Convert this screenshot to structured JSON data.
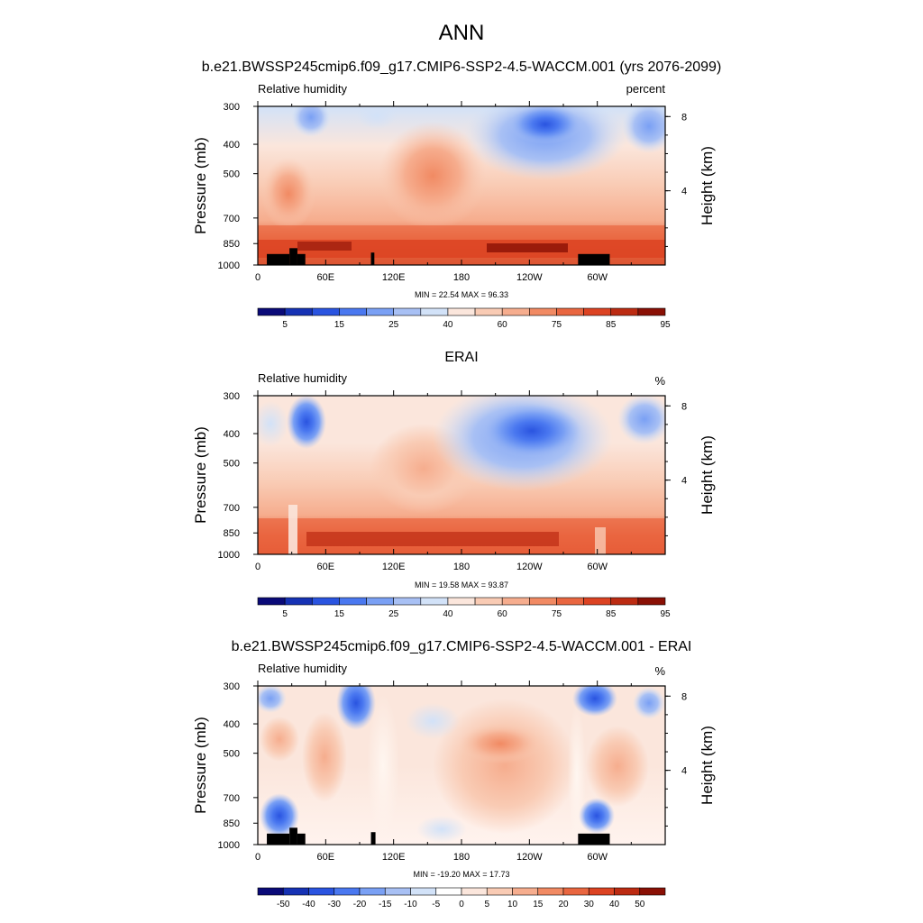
{
  "figure": {
    "title": "ANN"
  },
  "chart_data": [
    {
      "type": "heatmap",
      "title": "b.e21.BWSSP245cmip6.f09_g17.CMIP6-SSP2-4.5-WACCM.001 (yrs 2076-2099)",
      "variable_label": "Relative humidity",
      "units": "percent",
      "xlabel": "",
      "ylabel": "Pressure (mb)",
      "y2label": "Height (km)",
      "x_ticks": [
        "0",
        "60E",
        "120E",
        "180",
        "120W",
        "60W"
      ],
      "y_ticks": [
        "300",
        "400",
        "500",
        "700",
        "850",
        "1000"
      ],
      "y2_ticks": [
        "8",
        "4"
      ],
      "stats": "MIN =  22.54  MAX =  96.33",
      "colorbar_labels": [
        "5",
        "15",
        "25",
        "40",
        "60",
        "75",
        "85",
        "95"
      ],
      "colorbar_colors": [
        "#0a0a78",
        "#1632b4",
        "#2a54e0",
        "#4a78f0",
        "#7aa0f4",
        "#a8c0f4",
        "#d2e2f8",
        "#fbe6dc",
        "#f9cbb4",
        "#f6ad8e",
        "#f18a63",
        "#e96640",
        "#dc4322",
        "#bc2b12",
        "#8a1005"
      ],
      "high_regions": [
        [
          0,
          40,
          850,
          1000
        ],
        [
          40,
          110,
          880,
          1000
        ],
        [
          110,
          180,
          860,
          1000
        ],
        [
          180,
          245,
          870,
          1000
        ],
        [
          245,
          360,
          850,
          1000
        ]
      ],
      "terrain_blocks": [
        [
          8,
          28,
          920
        ],
        [
          28,
          35,
          880
        ],
        [
          35,
          42,
          920
        ],
        [
          100,
          103,
          910
        ],
        [
          283,
          311,
          920
        ]
      ]
    },
    {
      "type": "heatmap",
      "title": "ERAI",
      "variable_label": "Relative humidity",
      "units": "%",
      "xlabel": "",
      "ylabel": "Pressure (mb)",
      "y2label": "Height (km)",
      "x_ticks": [
        "0",
        "60E",
        "120E",
        "180",
        "120W",
        "60W"
      ],
      "y_ticks": [
        "300",
        "400",
        "500",
        "700",
        "850",
        "1000"
      ],
      "y2_ticks": [
        "8",
        "4"
      ],
      "stats": "MIN =  19.58  MAX =  93.87",
      "colorbar_labels": [
        "5",
        "15",
        "25",
        "40",
        "60",
        "75",
        "85",
        "95"
      ],
      "colorbar_colors": [
        "#0a0a78",
        "#1632b4",
        "#2a54e0",
        "#4a78f0",
        "#7aa0f4",
        "#a8c0f4",
        "#d2e2f8",
        "#fbe6dc",
        "#f9cbb4",
        "#f6ad8e",
        "#f18a63",
        "#e96640",
        "#dc4322",
        "#bc2b12",
        "#8a1005"
      ],
      "high_regions": [
        [
          0,
          30,
          860,
          1000
        ],
        [
          45,
          130,
          880,
          1000
        ],
        [
          130,
          270,
          870,
          1000
        ],
        [
          280,
          360,
          880,
          1000
        ]
      ],
      "terrain_blocks": []
    },
    {
      "type": "heatmap",
      "title": "b.e21.BWSSP245cmip6.f09_g17.CMIP6-SSP2-4.5-WACCM.001 - ERAI",
      "variable_label": "Relative humidity",
      "units": "%",
      "xlabel": "",
      "ylabel": "Pressure (mb)",
      "y2label": "Height (km)",
      "x_ticks": [
        "0",
        "60E",
        "120E",
        "180",
        "120W",
        "60W"
      ],
      "y_ticks": [
        "300",
        "400",
        "500",
        "700",
        "850",
        "1000"
      ],
      "y2_ticks": [
        "8",
        "4"
      ],
      "stats": "MIN = -19.20  MAX =  17.73",
      "colorbar_labels": [
        "-50",
        "-40",
        "-30",
        "-20",
        "-15",
        "-10",
        "-5",
        "0",
        "5",
        "10",
        "15",
        "20",
        "30",
        "40",
        "50"
      ],
      "colorbar_colors": [
        "#0a0a78",
        "#1632b4",
        "#2a54e0",
        "#4a78f0",
        "#7aa0f4",
        "#a8c0f4",
        "#d2e2f8",
        "#ffffff",
        "#fbe6dc",
        "#f9cbb4",
        "#f6ad8e",
        "#f18a63",
        "#e96640",
        "#dc4322",
        "#bc2b12",
        "#8a1005"
      ],
      "high_regions": [],
      "terrain_blocks": [
        [
          8,
          28,
          920
        ],
        [
          28,
          35,
          880
        ],
        [
          35,
          42,
          920
        ],
        [
          100,
          104,
          910
        ],
        [
          283,
          311,
          920
        ]
      ]
    }
  ]
}
